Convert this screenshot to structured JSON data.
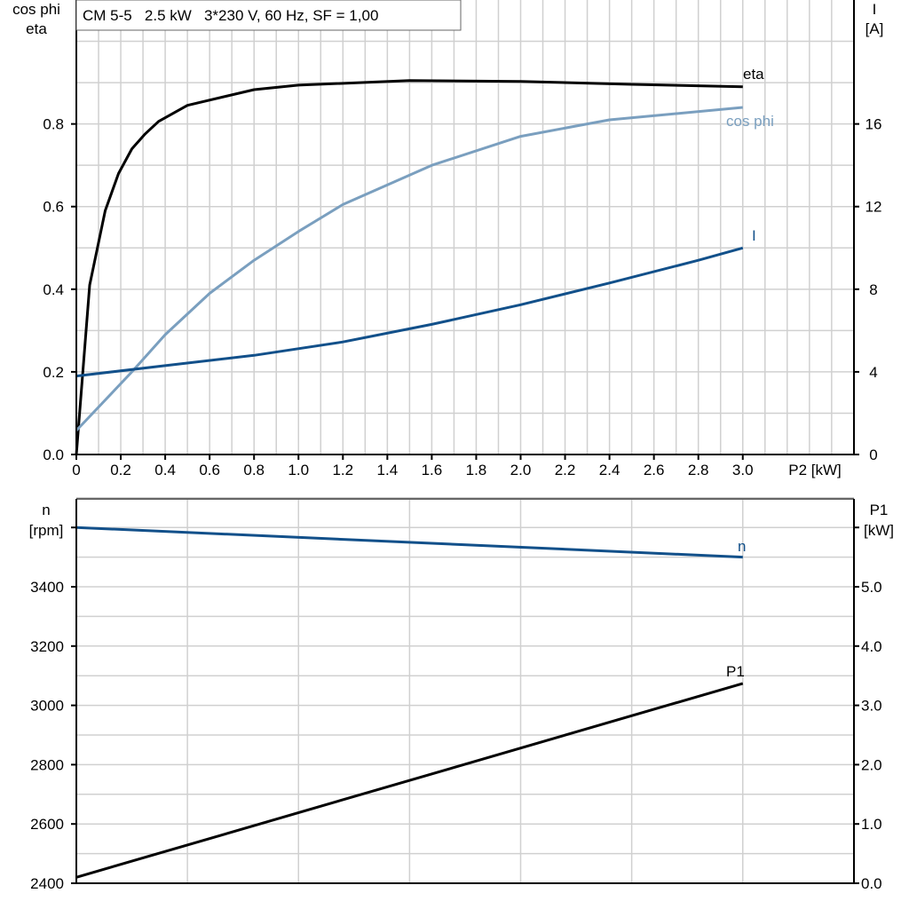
{
  "chart_data": [
    {
      "type": "line",
      "title": "CM 5-5   2.5 kW   3*230 V, 60 Hz, SF = 1,00",
      "xlabel": "P2 [kW]",
      "ylabel_left": [
        "cos phi",
        "eta"
      ],
      "ylabel_right": [
        "I",
        "[A]"
      ],
      "xlim": [
        0,
        3.5
      ],
      "ylim_left": [
        0,
        1.1
      ],
      "ylim_right": [
        0,
        22
      ],
      "xticks": [
        "0",
        "0.2",
        "0.4",
        "0.6",
        "0.8",
        "1.0",
        "1.2",
        "1.4",
        "1.6",
        "1.8",
        "2.0",
        "2.2",
        "2.4",
        "2.6",
        "2.8",
        "3.0"
      ],
      "yticks_left": [
        "0.0",
        "0.2",
        "0.4",
        "0.6",
        "0.8"
      ],
      "yticks_right": [
        "0",
        "4",
        "8",
        "12",
        "16"
      ],
      "grid": true,
      "series": [
        {
          "name": "eta",
          "axis": "left",
          "color": "#000000",
          "x": [
            0,
            0.06,
            0.13,
            0.19,
            0.25,
            0.31,
            0.37,
            0.5,
            0.8,
            1.0,
            1.5,
            2.0,
            2.5,
            3.0
          ],
          "y": [
            0,
            0.41,
            0.59,
            0.68,
            0.74,
            0.776,
            0.806,
            0.845,
            0.883,
            0.894,
            0.905,
            0.903,
            0.896,
            0.89
          ]
        },
        {
          "name": "cos phi",
          "axis": "left",
          "color": "#7a9fbf",
          "x": [
            0,
            0.25,
            0.4,
            0.6,
            0.8,
            1.0,
            1.2,
            1.6,
            2.0,
            2.4,
            3.0
          ],
          "y": [
            0.058,
            0.2,
            0.29,
            0.39,
            0.47,
            0.54,
            0.605,
            0.7,
            0.77,
            0.81,
            0.84
          ]
        },
        {
          "name": "I",
          "axis": "right",
          "color": "#12508a",
          "x": [
            0,
            0.4,
            0.8,
            1.2,
            1.6,
            2.0,
            2.4,
            2.8,
            3.0
          ],
          "y": [
            3.8,
            4.3,
            4.8,
            5.45,
            6.3,
            7.25,
            8.3,
            9.4,
            10.0
          ]
        }
      ]
    },
    {
      "type": "line",
      "ylabel_left": [
        "n",
        "[rpm]"
      ],
      "ylabel_right": [
        "P1",
        "[kW]"
      ],
      "xlim": [
        0,
        3.5
      ],
      "ylim_left": [
        2400,
        3700
      ],
      "ylim_right": [
        0,
        6.5
      ],
      "yticks_left": [
        "2400",
        "2600",
        "2800",
        "3000",
        "3200",
        "3400"
      ],
      "yticks_right": [
        "0.0",
        "1.0",
        "2.0",
        "3.0",
        "4.0",
        "5.0"
      ],
      "grid": true,
      "series": [
        {
          "name": "n",
          "axis": "left",
          "color": "#12508a",
          "x": [
            0,
            3.0
          ],
          "y": [
            3600,
            3500
          ]
        },
        {
          "name": "P1",
          "axis": "right",
          "color": "#000000",
          "x": [
            0,
            3.0
          ],
          "y": [
            0.1,
            3.37
          ]
        }
      ]
    }
  ]
}
